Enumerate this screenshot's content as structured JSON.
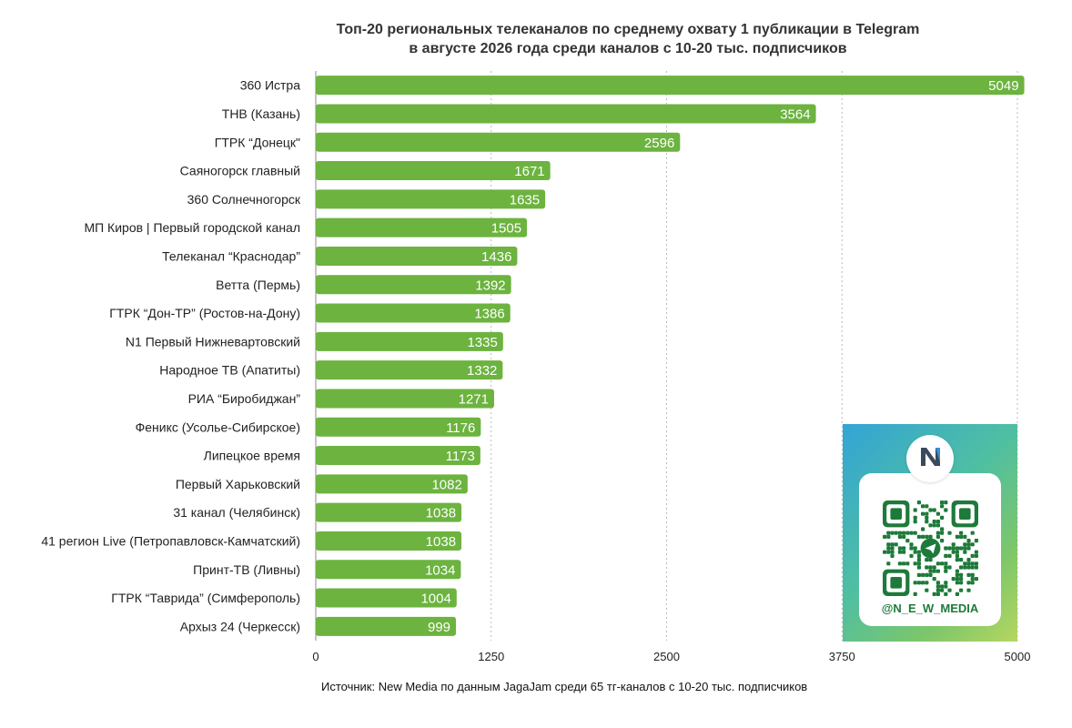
{
  "title_line1": "Топ-20 региональных телеканалов по среднему охвату 1 публикации в Telegram",
  "title_line2": "в августе 2026 года среди каналов с 10-20 тыс. подписчиков",
  "source": "Источник: New Media по данным JagaJam среди 65 тг-каналов с 10-20 тыс. подписчиков",
  "qr": {
    "handle": "@N_E_W_MEDIA",
    "logo_text": "New Media"
  },
  "colors": {
    "bar": "#6cb33f",
    "grid": "#bbbbbb",
    "qr_accent": "#1e7a3a"
  },
  "chart_data": {
    "type": "bar",
    "orientation": "horizontal",
    "title": "Топ-20 региональных телеканалов по среднему охвату 1 публикации в Telegram в августе 2026 года среди каналов с 10-20 тыс. подписчиков",
    "xlabel": "",
    "ylabel": "",
    "xlim": [
      0,
      5000
    ],
    "xticks": [
      0,
      1250,
      2500,
      3750,
      5000
    ],
    "grid": "vertical-dashed",
    "categories": [
      "360 Истра",
      "ТНВ (Казань)",
      "ГТРК “Донецк\"",
      "Саяногорск главный",
      "360 Солнечногорск",
      "МП Киров | Первый городской канал",
      "Телеканал “Краснодар”",
      "Ветта (Пермь)",
      "ГТРК “Дон-ТР” (Ростов-на-Дону)",
      "N1 Первый Нижневартовский",
      "Народное ТВ (Апатиты)",
      "РИА “Биробиджан”",
      "Феникс (Усолье-Сибирское)",
      "Липецкое время",
      "Первый Харьковский",
      "31 канал (Челябинск)",
      "41 регион Live (Петропавловск-Камчатский)",
      "Принт-ТВ (Ливны)",
      "ГТРК “Таврида” (Симферополь)",
      "Архыз 24 (Черкесск)"
    ],
    "values": [
      5049,
      3564,
      2596,
      1671,
      1635,
      1505,
      1436,
      1392,
      1386,
      1335,
      1332,
      1271,
      1176,
      1173,
      1082,
      1038,
      1038,
      1034,
      1004,
      999
    ]
  }
}
